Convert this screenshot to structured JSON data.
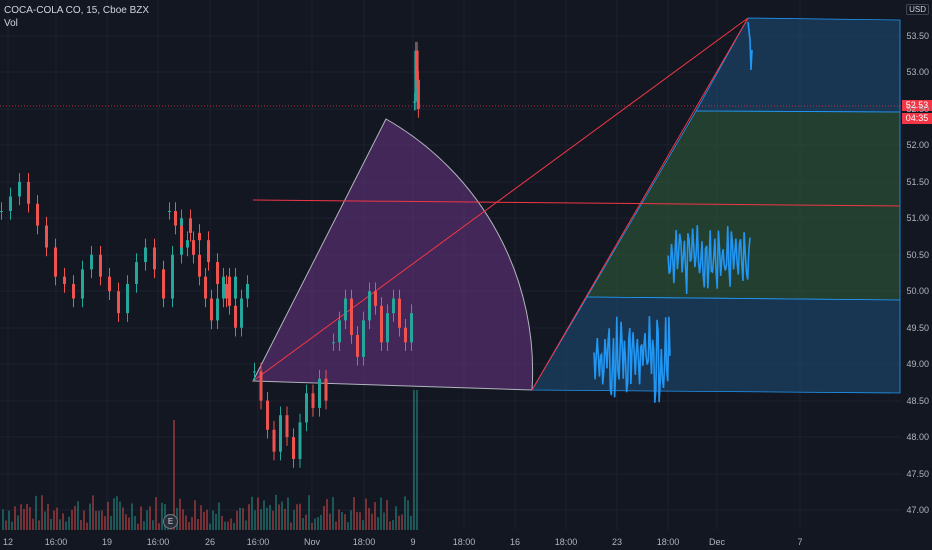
{
  "legend": {
    "symbol": "COCA-COLA CO, 15, Cboe BZX",
    "volume": "Vol"
  },
  "price_scale": {
    "currency": "USD",
    "ticks": [
      "53.50",
      "53.00",
      "52.50",
      "52.00",
      "51.50",
      "51.00",
      "50.50",
      "50.00",
      "49.50",
      "49.00",
      "48.50",
      "48.00",
      "47.50",
      "47.00"
    ],
    "last_price": "52.53",
    "countdown": "04:35"
  },
  "time_axis": [
    "12",
    "16:00",
    "19",
    "16:00",
    "26",
    "16:00",
    "Nov",
    "18:00",
    "9",
    "18:00",
    "16",
    "18:00",
    "23",
    "18:00",
    "Dec",
    "7"
  ],
  "earnings_marker": "E",
  "colors": {
    "background": "#131722",
    "up": "#26a69a",
    "down": "#ef5350",
    "projection": "#2196f3",
    "pitchfan_top": "#1e5580",
    "pitchfan_mid": "#2e5e3c",
    "arc_fill": "#7b3f9e",
    "level_line": "#f23645"
  },
  "chart_data": {
    "type": "candlestick",
    "ylim": [
      46.8,
      53.8
    ],
    "series": [
      {
        "values": [
          51.1,
          51.3,
          51.5,
          51.2,
          50.9,
          50.6,
          50.2,
          50.1,
          49.9,
          50.3,
          50.5,
          50.2,
          50.0,
          49.7,
          50.1,
          50.4,
          50.6,
          50.3,
          49.9,
          50.5,
          51.0,
          50.8,
          50.7,
          50.4,
          50.1,
          49.9,
          50.2
        ]
      },
      {
        "values": [
          51.1,
          50.9,
          50.6,
          50.7,
          50.5,
          50.2,
          49.9,
          49.6,
          49.9,
          50.2,
          49.8,
          49.5,
          49.9,
          50.1
        ]
      },
      {
        "values": [
          48.9,
          48.5,
          48.1,
          47.8,
          48.3,
          48.0,
          47.7,
          48.2,
          48.6,
          48.4,
          48.8,
          48.5
        ]
      },
      {
        "values": [
          49.3,
          49.6,
          49.9,
          49.4,
          49.1,
          49.6,
          50.0,
          49.8,
          49.3,
          49.7,
          49.9,
          49.5,
          49.3,
          49.7
        ]
      },
      {
        "values": [
          52.6,
          53.3,
          52.9,
          52.5
        ]
      }
    ]
  }
}
